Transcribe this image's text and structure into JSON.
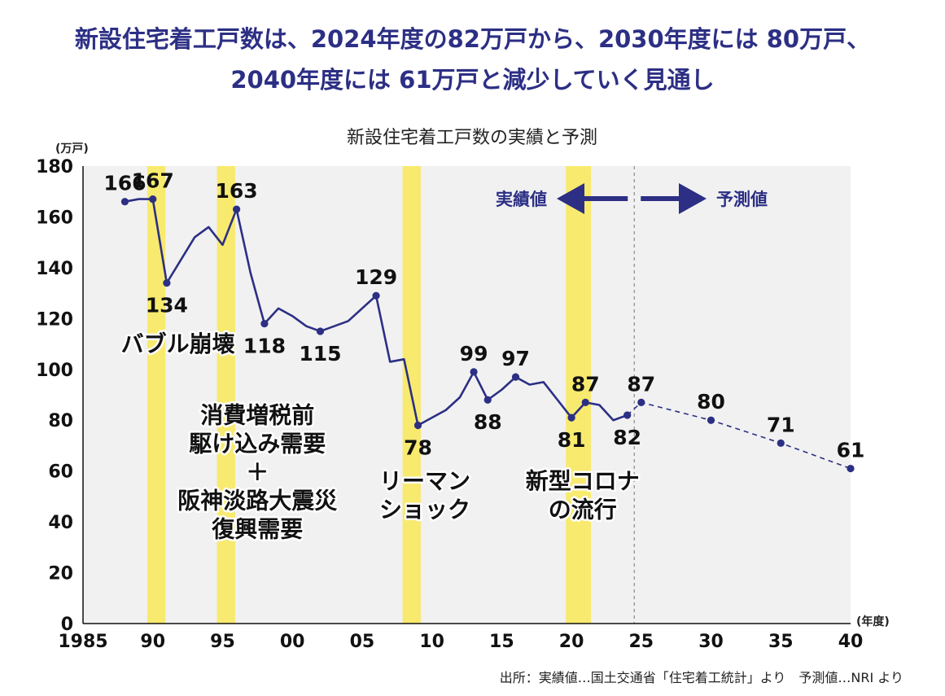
{
  "headline": {
    "line1": "新設住宅着工戸数は、2024年度の82万戸から、2030年度には 80万戸、",
    "line2": "2040年度には 61万戸と減少していく見通し"
  },
  "colors": {
    "accent": "#2c2f84",
    "highlight": "#f7ea6e",
    "plot_bg": "#f1f1f1"
  },
  "chart_data": {
    "type": "line",
    "title": "新設住宅着工戸数の実績と予測",
    "ylabel": "(万戸)",
    "xlabel": "(年度)",
    "ylim": [
      0,
      180
    ],
    "xlim": [
      1985,
      2040
    ],
    "y_ticks": [
      "0",
      "20",
      "40",
      "60",
      "80",
      "100",
      "120",
      "140",
      "160",
      "180"
    ],
    "x_ticks": [
      {
        "year": 1985,
        "label": "1985"
      },
      {
        "year": 1990,
        "label": "90"
      },
      {
        "year": 1995,
        "label": "95"
      },
      {
        "year": 2000,
        "label": "00"
      },
      {
        "year": 2005,
        "label": "05"
      },
      {
        "year": 2010,
        "label": "10"
      },
      {
        "year": 2015,
        "label": "15"
      },
      {
        "year": 2020,
        "label": "20"
      },
      {
        "year": 2025,
        "label": "25"
      },
      {
        "year": 2030,
        "label": "30"
      },
      {
        "year": 2035,
        "label": "35"
      },
      {
        "year": 2040,
        "label": "40"
      }
    ],
    "actual": [
      {
        "x": 1988,
        "y": 166
      },
      {
        "x": 1989,
        "y": 167
      },
      {
        "x": 1990,
        "y": 167
      },
      {
        "x": 1991,
        "y": 134
      },
      {
        "x": 1992,
        "y": 143
      },
      {
        "x": 1993,
        "y": 152
      },
      {
        "x": 1994,
        "y": 156
      },
      {
        "x": 1995,
        "y": 149
      },
      {
        "x": 1996,
        "y": 163
      },
      {
        "x": 1997,
        "y": 138
      },
      {
        "x": 1998,
        "y": 118
      },
      {
        "x": 1999,
        "y": 124
      },
      {
        "x": 2000,
        "y": 121
      },
      {
        "x": 2001,
        "y": 117
      },
      {
        "x": 2002,
        "y": 115
      },
      {
        "x": 2003,
        "y": 117
      },
      {
        "x": 2004,
        "y": 119
      },
      {
        "x": 2005,
        "y": 124
      },
      {
        "x": 2006,
        "y": 129
      },
      {
        "x": 2007,
        "y": 103
      },
      {
        "x": 2008,
        "y": 104
      },
      {
        "x": 2009,
        "y": 78
      },
      {
        "x": 2010,
        "y": 81
      },
      {
        "x": 2011,
        "y": 84
      },
      {
        "x": 2012,
        "y": 89
      },
      {
        "x": 2013,
        "y": 99
      },
      {
        "x": 2014,
        "y": 88
      },
      {
        "x": 2015,
        "y": 92
      },
      {
        "x": 2016,
        "y": 97
      },
      {
        "x": 2017,
        "y": 94
      },
      {
        "x": 2018,
        "y": 95
      },
      {
        "x": 2019,
        "y": 88
      },
      {
        "x": 2020,
        "y": 81
      },
      {
        "x": 2021,
        "y": 87
      },
      {
        "x": 2022,
        "y": 86
      },
      {
        "x": 2023,
        "y": 80
      },
      {
        "x": 2024,
        "y": 82
      }
    ],
    "forecast": [
      {
        "x": 2024,
        "y": 82
      },
      {
        "x": 2025,
        "y": 87
      },
      {
        "x": 2030,
        "y": 80
      },
      {
        "x": 2035,
        "y": 71
      },
      {
        "x": 2040,
        "y": 61
      }
    ],
    "markers": [
      1988,
      1990,
      1991,
      1996,
      1998,
      2002,
      2006,
      2009,
      2013,
      2014,
      2016,
      2020,
      2021,
      2024,
      2025,
      2030,
      2035,
      2040
    ],
    "data_labels": [
      {
        "x": 1988,
        "y": 166,
        "text": "166",
        "pos": "above"
      },
      {
        "x": 1990,
        "y": 167,
        "text": "167",
        "pos": "above"
      },
      {
        "x": 1991,
        "y": 134,
        "text": "134",
        "pos": "below"
      },
      {
        "x": 1996,
        "y": 163,
        "text": "163",
        "pos": "above"
      },
      {
        "x": 1998,
        "y": 118,
        "text": "118",
        "pos": "below"
      },
      {
        "x": 2002,
        "y": 115,
        "text": "115",
        "pos": "below"
      },
      {
        "x": 2006,
        "y": 129,
        "text": "129",
        "pos": "above"
      },
      {
        "x": 2009,
        "y": 78,
        "text": "78",
        "pos": "below"
      },
      {
        "x": 2013,
        "y": 99,
        "text": "99",
        "pos": "above"
      },
      {
        "x": 2014,
        "y": 88,
        "text": "88",
        "pos": "below"
      },
      {
        "x": 2016,
        "y": 97,
        "text": "97",
        "pos": "above"
      },
      {
        "x": 2020,
        "y": 81,
        "text": "81",
        "pos": "below"
      },
      {
        "x": 2021,
        "y": 87,
        "text": "87",
        "pos": "above"
      },
      {
        "x": 2024,
        "y": 82,
        "text": "82",
        "pos": "below"
      },
      {
        "x": 2025,
        "y": 87,
        "text": "87",
        "pos": "above"
      },
      {
        "x": 2030,
        "y": 80,
        "text": "80",
        "pos": "above"
      },
      {
        "x": 2035,
        "y": 71,
        "text": "71",
        "pos": "above"
      },
      {
        "x": 2040,
        "y": 61,
        "text": "61",
        "pos": "above"
      }
    ],
    "highlight_bands": [
      {
        "from": 1989.6,
        "to": 1990.9
      },
      {
        "from": 1994.6,
        "to": 1995.9
      },
      {
        "from": 2007.9,
        "to": 2009.2
      },
      {
        "from": 2019.6,
        "to": 2021.4
      }
    ],
    "divider_year": 2024.5,
    "annotations": [
      {
        "x": 1991.8,
        "y": 107,
        "lines": [
          "バブル崩壊"
        ]
      },
      {
        "x": 1997.5,
        "y": 79,
        "lines": [
          "消費増税前",
          "駆け込み需要",
          "＋",
          "阪神淡路大震災",
          "復興需要"
        ]
      },
      {
        "x": 2009.5,
        "y": 53,
        "lines": [
          "リーマン",
          "ショック"
        ]
      },
      {
        "x": 2020.8,
        "y": 53,
        "lines": [
          "新型コロナ",
          "の流行"
        ]
      }
    ],
    "arrow_labels": {
      "actual": "実績値",
      "forecast": "予測値"
    },
    "source": "出所：実績値…国土交通省「住宅着工統計」より　予測値…NRI より"
  }
}
